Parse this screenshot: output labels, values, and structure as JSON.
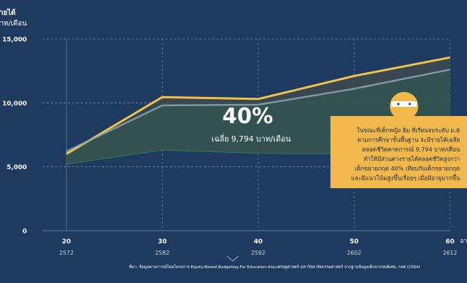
{
  "chart_data": {
    "type": "area",
    "ylabel": "รายได้",
    "yunit": "บาท/เดือน",
    "x": [
      20,
      30,
      40,
      50,
      60
    ],
    "x_years": [
      "2572",
      "2582",
      "2592",
      "2602",
      "2612"
    ],
    "xlabel_partial": "อา",
    "ylim": [
      0,
      15000
    ],
    "yticks": [
      "0",
      "5,000",
      "10,000",
      "15,000"
    ],
    "grid": true,
    "series": [
      {
        "values": [
          6000,
          10450,
          10300,
          12100,
          13550
        ],
        "color": "#f2c14e"
      },
      {
        "values": [
          6200,
          9800,
          9850,
          11100,
          12600
        ],
        "color": "#8ea3b6"
      },
      {
        "values": [
          5200,
          6300,
          6050,
          6000,
          6000
        ],
        "color": "#2f7a57"
      }
    ],
    "annotation": {
      "big": "40%",
      "sub": "เฉลี่ย 9,794 บาท/เดือน"
    }
  },
  "callout": {
    "lines": [
      "ในขณะที่เด็กหญิง ฮิม ที่เรียนจบระดับ ม.6",
      "ตามการศึกษาขั้นพื้นฐาน จะมีรายได้เฉลี่ย",
      "ตลอดชีวิตคาดการณ์ 9,794 บาท/เดือน",
      "ทำให้มีส่วนต่างรายได้ตลอดชีวิตสูงกว่า",
      "เด็กขยายภฤต 40% เทียบกับเด็กขยายภฤต",
      "และมีแนวโน้มสูงขึ้นเรื่อยๆ เมื่อมีอายุมากขึ้น"
    ],
    "bg": "#f2b84b"
  },
  "source": "ที่มา: ข้อมูลคาดการณ์โดยโครงการ Equity-Based Budgeting For Education คณะเศรษฐศาสตร์ มหาวิทยาลัยธรรมศาสตร์ จากฐานข้อมูลเด็กยากจนพิเศษ, กสศ (2564)",
  "colors": {
    "background": "#1e3a5f",
    "accent": "#f2c14e",
    "grid": "#9fb3c8"
  }
}
